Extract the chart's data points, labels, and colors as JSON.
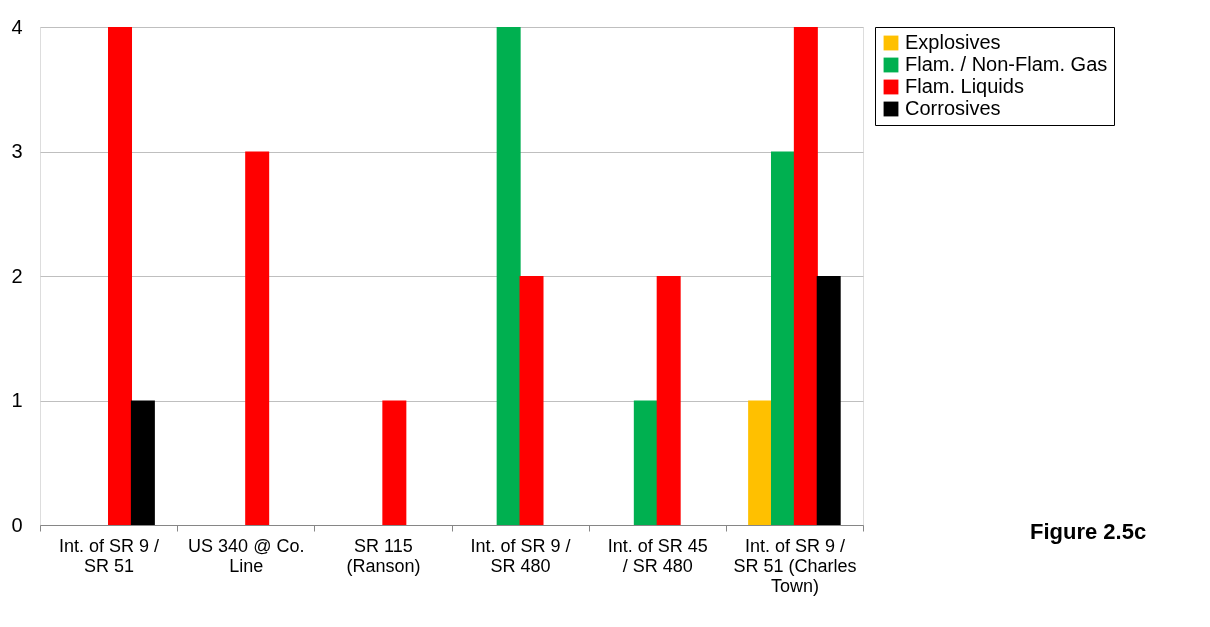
{
  "chart_data": {
    "type": "bar",
    "categories": [
      "Int. of SR 9 / SR 51",
      "US 340 @ Co. Line",
      "SR 115 (Ranson)",
      "Int. of SR 9 / SR 480",
      "Int. of SR 45 / SR 480",
      "Int. of SR 9 / SR 51 (Charles Town)"
    ],
    "series": [
      {
        "name": "Explosives",
        "color": "#ffc000",
        "values": [
          null,
          null,
          null,
          null,
          null,
          1
        ]
      },
      {
        "name": "Flam. / Non-Flam. Gas",
        "color": "#00b050",
        "values": [
          null,
          null,
          null,
          4,
          1,
          3
        ]
      },
      {
        "name": "Flam. Liquids",
        "color": "#ff0000",
        "values": [
          4,
          3,
          1,
          2,
          2,
          4
        ]
      },
      {
        "name": "Corrosives",
        "color": "#000000",
        "values": [
          1,
          null,
          null,
          null,
          null,
          2
        ]
      }
    ],
    "ylim": [
      0,
      4
    ],
    "yticks": [
      0,
      1,
      2,
      3,
      4
    ],
    "grid": "y",
    "legend": "right",
    "annotations": [
      "Figure 2.5c"
    ]
  }
}
